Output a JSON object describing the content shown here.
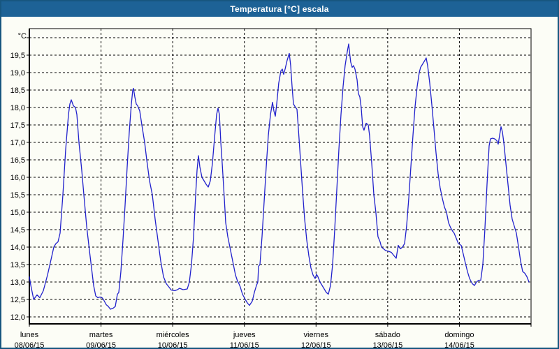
{
  "window": {
    "title": "Temperatura [°C] escala",
    "title_bar_color": "#1d6296",
    "border_color": "#17567f",
    "background_color": "#fcfdf6"
  },
  "chart_data": {
    "type": "line",
    "title": "Temperatura [°C] escala",
    "y_unit_label": "°C",
    "line_color": "#2121cc",
    "grid": "dashed",
    "legend": "none",
    "xlim_days": [
      0,
      7
    ],
    "ylim": [
      11.8,
      20.3
    ],
    "y_gridline_values": [
      12.0,
      12.5,
      13.0,
      13.5,
      14.0,
      14.5,
      15.0,
      15.5,
      16.0,
      16.5,
      17.0,
      17.5,
      18.0,
      18.5,
      19.0,
      19.5,
      20.0
    ],
    "y_ticks": [
      {
        "value": 19.5,
        "label": "19,5"
      },
      {
        "value": 19.0,
        "label": "19,0"
      },
      {
        "value": 18.5,
        "label": "18,5"
      },
      {
        "value": 18.0,
        "label": "18,0"
      },
      {
        "value": 17.5,
        "label": "17,5"
      },
      {
        "value": 17.0,
        "label": "17,0"
      },
      {
        "value": 16.5,
        "label": "16,5"
      },
      {
        "value": 16.0,
        "label": "16,0"
      },
      {
        "value": 15.5,
        "label": "15,5"
      },
      {
        "value": 15.0,
        "label": "15,0"
      },
      {
        "value": 14.5,
        "label": "14,5"
      },
      {
        "value": 14.0,
        "label": "14,0"
      },
      {
        "value": 13.5,
        "label": "13,5"
      },
      {
        "value": 13.0,
        "label": "13,0"
      },
      {
        "value": 12.5,
        "label": "12,5"
      },
      {
        "value": 12.0,
        "label": "12,0"
      }
    ],
    "days": [
      {
        "name": "lunes",
        "date": "08/06/15"
      },
      {
        "name": "martes",
        "date": "09/06/15"
      },
      {
        "name": "miércoles",
        "date": "10/06/15"
      },
      {
        "name": "jueves",
        "date": "11/06/15"
      },
      {
        "name": "viernes",
        "date": "12/06/15"
      },
      {
        "name": "sábado",
        "date": "13/06/15"
      },
      {
        "name": "domingo",
        "date": "14/06/15"
      }
    ],
    "series": [
      {
        "name": "Temperatura",
        "points": [
          [
            0.0,
            13.15
          ],
          [
            0.02,
            12.9
          ],
          [
            0.06,
            12.5
          ],
          [
            0.107,
            12.63
          ],
          [
            0.146,
            12.55
          ],
          [
            0.195,
            12.75
          ],
          [
            0.253,
            13.2
          ],
          [
            0.292,
            13.55
          ],
          [
            0.341,
            14.0
          ],
          [
            0.37,
            14.1
          ],
          [
            0.4,
            14.15
          ],
          [
            0.429,
            14.4
          ],
          [
            0.468,
            15.5
          ],
          [
            0.507,
            16.8
          ],
          [
            0.546,
            17.8
          ],
          [
            0.565,
            18.1
          ],
          [
            0.585,
            18.22
          ],
          [
            0.614,
            18.05
          ],
          [
            0.643,
            18.0
          ],
          [
            0.663,
            17.8
          ],
          [
            0.692,
            17.0
          ],
          [
            0.731,
            16.2
          ],
          [
            0.76,
            15.5
          ],
          [
            0.799,
            14.6
          ],
          [
            0.838,
            13.9
          ],
          [
            0.868,
            13.4
          ],
          [
            0.897,
            12.9
          ],
          [
            0.926,
            12.6
          ],
          [
            0.955,
            12.55
          ],
          [
            0.985,
            12.57
          ],
          [
            1.014,
            12.55
          ],
          [
            1.033,
            12.5
          ],
          [
            1.072,
            12.35
          ],
          [
            1.102,
            12.3
          ],
          [
            1.131,
            12.22
          ],
          [
            1.17,
            12.25
          ],
          [
            1.199,
            12.3
          ],
          [
            1.228,
            12.65
          ],
          [
            1.248,
            12.7
          ],
          [
            1.277,
            13.3
          ],
          [
            1.306,
            14.2
          ],
          [
            1.336,
            15.2
          ],
          [
            1.365,
            16.3
          ],
          [
            1.394,
            17.3
          ],
          [
            1.423,
            18.1
          ],
          [
            1.443,
            18.5
          ],
          [
            1.453,
            18.55
          ],
          [
            1.472,
            18.3
          ],
          [
            1.492,
            18.1
          ],
          [
            1.511,
            18.05
          ],
          [
            1.54,
            17.9
          ],
          [
            1.57,
            17.5
          ],
          [
            1.609,
            17.0
          ],
          [
            1.638,
            16.5
          ],
          [
            1.677,
            15.9
          ],
          [
            1.716,
            15.5
          ],
          [
            1.755,
            14.8
          ],
          [
            1.794,
            14.2
          ],
          [
            1.833,
            13.6
          ],
          [
            1.872,
            13.15
          ],
          [
            1.911,
            12.95
          ],
          [
            1.95,
            12.85
          ],
          [
            1.979,
            12.77
          ],
          [
            2.028,
            12.75
          ],
          [
            2.067,
            12.78
          ],
          [
            2.096,
            12.82
          ],
          [
            2.145,
            12.78
          ],
          [
            2.203,
            12.8
          ],
          [
            2.233,
            13.0
          ],
          [
            2.262,
            13.5
          ],
          [
            2.291,
            14.3
          ],
          [
            2.32,
            15.5
          ],
          [
            2.34,
            16.2
          ],
          [
            2.359,
            16.62
          ],
          [
            2.379,
            16.3
          ],
          [
            2.408,
            16.0
          ],
          [
            2.437,
            15.9
          ],
          [
            2.467,
            15.8
          ],
          [
            2.496,
            15.72
          ],
          [
            2.525,
            15.9
          ],
          [
            2.554,
            16.4
          ],
          [
            2.583,
            17.1
          ],
          [
            2.613,
            17.8
          ],
          [
            2.632,
            17.98
          ],
          [
            2.652,
            17.8
          ],
          [
            2.671,
            17.0
          ],
          [
            2.691,
            16.4
          ],
          [
            2.72,
            15.4
          ],
          [
            2.74,
            14.7
          ],
          [
            2.769,
            14.3
          ],
          [
            2.808,
            13.9
          ],
          [
            2.847,
            13.5
          ],
          [
            2.876,
            13.2
          ],
          [
            2.905,
            13.02
          ],
          [
            2.925,
            12.95
          ],
          [
            2.944,
            12.85
          ],
          [
            2.974,
            12.65
          ],
          [
            3.013,
            12.5
          ],
          [
            3.042,
            12.4
          ],
          [
            3.071,
            12.33
          ],
          [
            3.11,
            12.45
          ],
          [
            3.139,
            12.7
          ],
          [
            3.169,
            12.9
          ],
          [
            3.188,
            13.0
          ],
          [
            3.198,
            13.45
          ],
          [
            3.217,
            13.5
          ],
          [
            3.247,
            14.3
          ],
          [
            3.276,
            15.3
          ],
          [
            3.305,
            16.3
          ],
          [
            3.334,
            17.2
          ],
          [
            3.364,
            17.8
          ],
          [
            3.393,
            18.15
          ],
          [
            3.412,
            17.9
          ],
          [
            3.432,
            17.75
          ],
          [
            3.451,
            18.1
          ],
          [
            3.48,
            18.7
          ],
          [
            3.51,
            19.05
          ],
          [
            3.529,
            19.1
          ],
          [
            3.549,
            18.95
          ],
          [
            3.568,
            19.1
          ],
          [
            3.597,
            19.35
          ],
          [
            3.627,
            19.55
          ],
          [
            3.646,
            19.2
          ],
          [
            3.666,
            18.6
          ],
          [
            3.685,
            18.1
          ],
          [
            3.714,
            18.0
          ],
          [
            3.734,
            17.95
          ],
          [
            3.753,
            17.4
          ],
          [
            3.783,
            16.5
          ],
          [
            3.812,
            15.6
          ],
          [
            3.841,
            14.8
          ],
          [
            3.87,
            14.2
          ],
          [
            3.9,
            13.75
          ],
          [
            3.929,
            13.4
          ],
          [
            3.958,
            13.2
          ],
          [
            3.987,
            13.1
          ],
          [
            4.007,
            13.22
          ],
          [
            4.026,
            13.15
          ],
          [
            4.056,
            13.0
          ],
          [
            4.085,
            12.9
          ],
          [
            4.114,
            12.8
          ],
          [
            4.143,
            12.7
          ],
          [
            4.172,
            12.65
          ],
          [
            4.202,
            12.9
          ],
          [
            4.231,
            13.5
          ],
          [
            4.26,
            14.5
          ],
          [
            4.289,
            15.6
          ],
          [
            4.319,
            16.8
          ],
          [
            4.348,
            17.8
          ],
          [
            4.377,
            18.6
          ],
          [
            4.406,
            19.2
          ],
          [
            4.436,
            19.6
          ],
          [
            4.455,
            19.82
          ],
          [
            4.475,
            19.45
          ],
          [
            4.484,
            19.3
          ],
          [
            4.504,
            19.15
          ],
          [
            4.523,
            19.2
          ],
          [
            4.543,
            19.1
          ],
          [
            4.572,
            18.8
          ],
          [
            4.591,
            18.4
          ],
          [
            4.611,
            18.3
          ],
          [
            4.63,
            18.0
          ],
          [
            4.65,
            17.45
          ],
          [
            4.669,
            17.35
          ],
          [
            4.699,
            17.55
          ],
          [
            4.728,
            17.5
          ],
          [
            4.747,
            17.2
          ],
          [
            4.777,
            16.4
          ],
          [
            4.806,
            15.5
          ],
          [
            4.835,
            15.0
          ],
          [
            4.864,
            14.3
          ],
          [
            4.894,
            14.15
          ],
          [
            4.913,
            14.0
          ],
          [
            4.942,
            13.95
          ],
          [
            4.972,
            13.9
          ],
          [
            5.011,
            13.88
          ],
          [
            5.05,
            13.85
          ],
          [
            5.089,
            13.75
          ],
          [
            5.118,
            13.68
          ],
          [
            5.147,
            14.05
          ],
          [
            5.177,
            13.95
          ],
          [
            5.206,
            14.0
          ],
          [
            5.235,
            14.1
          ],
          [
            5.264,
            14.6
          ],
          [
            5.294,
            15.4
          ],
          [
            5.323,
            16.3
          ],
          [
            5.352,
            17.2
          ],
          [
            5.381,
            18.0
          ],
          [
            5.411,
            18.6
          ],
          [
            5.44,
            19.0
          ],
          [
            5.459,
            19.15
          ],
          [
            5.489,
            19.25
          ],
          [
            5.518,
            19.35
          ],
          [
            5.537,
            19.42
          ],
          [
            5.557,
            19.2
          ],
          [
            5.586,
            18.7
          ],
          [
            5.615,
            18.1
          ],
          [
            5.645,
            17.4
          ],
          [
            5.674,
            16.7
          ],
          [
            5.703,
            16.1
          ],
          [
            5.732,
            15.7
          ],
          [
            5.762,
            15.4
          ],
          [
            5.791,
            15.15
          ],
          [
            5.82,
            15.0
          ],
          [
            5.849,
            14.7
          ],
          [
            5.879,
            14.55
          ],
          [
            5.908,
            14.45
          ],
          [
            5.927,
            14.4
          ],
          [
            5.957,
            14.25
          ],
          [
            5.986,
            14.1
          ],
          [
            6.025,
            14.05
          ],
          [
            6.054,
            13.8
          ],
          [
            6.083,
            13.55
          ],
          [
            6.113,
            13.3
          ],
          [
            6.142,
            13.1
          ],
          [
            6.181,
            12.95
          ],
          [
            6.21,
            12.9
          ],
          [
            6.239,
            13.0
          ],
          [
            6.269,
            13.05
          ],
          [
            6.298,
            13.05
          ],
          [
            6.327,
            13.5
          ],
          [
            6.356,
            14.5
          ],
          [
            6.386,
            15.8
          ],
          [
            6.415,
            16.9
          ],
          [
            6.434,
            17.1
          ],
          [
            6.464,
            17.12
          ],
          [
            6.493,
            17.1
          ],
          [
            6.522,
            17.05
          ],
          [
            6.542,
            16.95
          ],
          [
            6.561,
            17.2
          ],
          [
            6.581,
            17.45
          ],
          [
            6.6,
            17.3
          ],
          [
            6.62,
            17.0
          ],
          [
            6.649,
            16.4
          ],
          [
            6.678,
            15.8
          ],
          [
            6.708,
            15.2
          ],
          [
            6.737,
            14.8
          ],
          [
            6.766,
            14.6
          ],
          [
            6.795,
            14.4
          ],
          [
            6.825,
            14.0
          ],
          [
            6.854,
            13.6
          ],
          [
            6.883,
            13.3
          ],
          [
            6.913,
            13.25
          ],
          [
            6.942,
            13.15
          ],
          [
            6.971,
            13.0
          ]
        ]
      }
    ]
  }
}
